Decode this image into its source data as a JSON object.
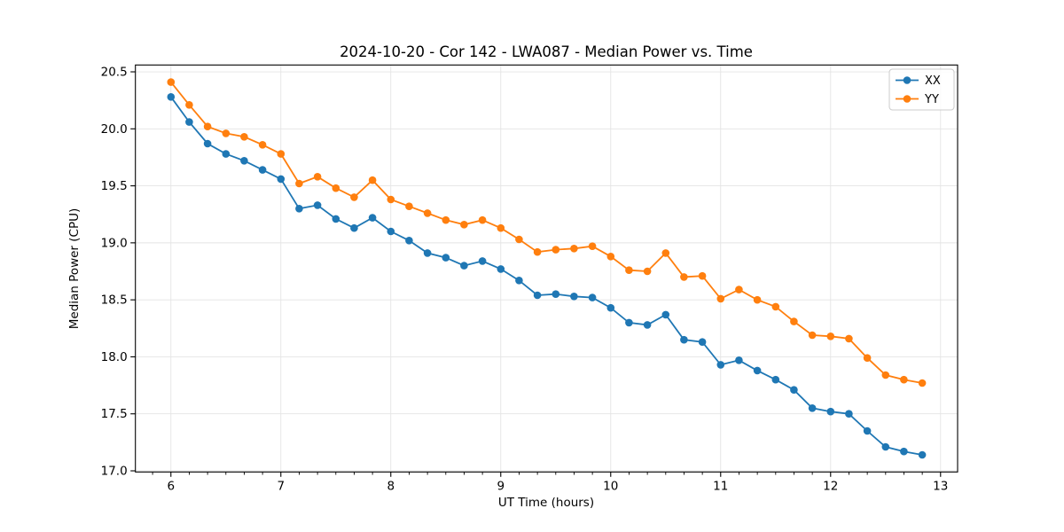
{
  "chart_data": {
    "type": "line",
    "title": "2024-10-20 - Cor 142 - LWA087 - Median Power vs. Time",
    "xlabel": "UT Time (hours)",
    "ylabel": "Median Power (CPU)",
    "xlim": [
      5.677,
      13.155
    ],
    "ylim": [
      16.99,
      20.56
    ],
    "x_ticks": [
      6,
      7,
      8,
      9,
      10,
      11,
      12,
      13
    ],
    "x_minor_tick_step": 0.16667,
    "y_ticks": [
      17.0,
      17.5,
      18.0,
      18.5,
      19.0,
      19.5,
      20.0,
      20.5
    ],
    "grid": true,
    "legend_position": "upper right",
    "background": "#ffffff",
    "x": [
      6.0,
      6.1667,
      6.3333,
      6.5,
      6.6667,
      6.8333,
      7.0,
      7.1667,
      7.3333,
      7.5,
      7.6667,
      7.8333,
      8.0,
      8.1667,
      8.3333,
      8.5,
      8.6667,
      8.8333,
      9.0,
      9.1667,
      9.3333,
      9.5,
      9.6667,
      9.8333,
      10.0,
      10.1667,
      10.3333,
      10.5,
      10.6667,
      10.8333,
      11.0,
      11.1667,
      11.3333,
      11.5,
      11.6667,
      11.8333,
      12.0,
      12.1667,
      12.3333,
      12.5,
      12.6667,
      12.8333
    ],
    "series": [
      {
        "name": "XX",
        "color": "#1f77b4",
        "marker": "circle",
        "values": [
          20.28,
          20.06,
          19.87,
          19.78,
          19.72,
          19.64,
          19.56,
          19.3,
          19.33,
          19.21,
          19.13,
          19.22,
          19.1,
          19.02,
          18.91,
          18.87,
          18.8,
          18.84,
          18.77,
          18.67,
          18.54,
          18.55,
          18.53,
          18.52,
          18.43,
          18.3,
          18.28,
          18.37,
          18.15,
          18.13,
          17.93,
          17.97,
          17.88,
          17.8,
          17.71,
          17.55,
          17.52,
          17.5,
          17.35,
          17.21,
          17.17,
          17.14
        ]
      },
      {
        "name": "YY",
        "color": "#ff7f0e",
        "marker": "circle",
        "values": [
          20.41,
          20.21,
          20.02,
          19.96,
          19.93,
          19.86,
          19.78,
          19.52,
          19.58,
          19.48,
          19.4,
          19.55,
          19.38,
          19.32,
          19.26,
          19.2,
          19.16,
          19.2,
          19.13,
          19.03,
          18.92,
          18.94,
          18.95,
          18.97,
          18.88,
          18.76,
          18.75,
          18.91,
          18.7,
          18.71,
          18.51,
          18.59,
          18.5,
          18.44,
          18.31,
          18.19,
          18.18,
          18.16,
          17.99,
          17.84,
          17.8,
          17.77
        ]
      }
    ]
  }
}
